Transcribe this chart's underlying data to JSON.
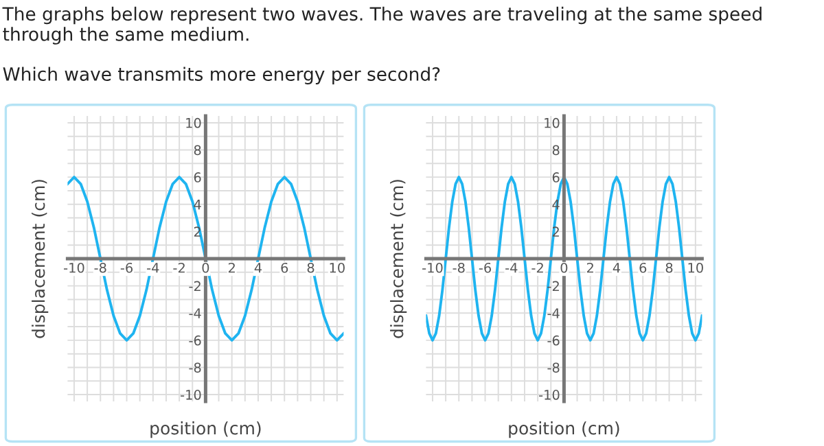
{
  "chart_data": [
    {
      "type": "line",
      "annotations": [
        "The graphs below represent two waves. The waves are traveling at the same speed through the same medium.",
        "Which wave transmits more energy per second?"
      ],
      "xlabel": "position (cm)",
      "ylabel": "displacement (cm)",
      "xlim": [
        -10.5,
        10.5
      ],
      "ylim": [
        -10.5,
        10.5
      ],
      "xticks": [
        -10,
        -8,
        -6,
        -4,
        -2,
        0,
        2,
        4,
        6,
        8,
        10
      ],
      "yticks": [
        -10,
        -8,
        -6,
        -4,
        -2,
        2,
        4,
        6,
        8,
        10
      ],
      "grid": true,
      "series": [
        {
          "color": "#1fb4f0",
          "x": [
            -10.5,
            -10,
            -9.5,
            -9,
            -8.5,
            -8,
            -7.5,
            -7,
            -6.5,
            -6,
            -5.5,
            -5,
            -4.5,
            -4,
            -3.5,
            -3,
            -2.5,
            -2,
            -1.5,
            -1,
            -0.5,
            0,
            0.5,
            1,
            1.5,
            2,
            2.5,
            3,
            3.5,
            4,
            4.5,
            5,
            5.5,
            6,
            6.5,
            7,
            7.5,
            8,
            8.5,
            9,
            9.5,
            10,
            10.5
          ],
          "values": [
            5.5,
            6,
            5.5,
            4.2,
            2.3,
            0,
            -2.3,
            -4.2,
            -5.5,
            -6,
            -5.5,
            -4.2,
            -2.3,
            0,
            2.3,
            4.2,
            5.5,
            6,
            5.5,
            4.2,
            2.3,
            0,
            -2.3,
            -4.2,
            -5.5,
            -6,
            -5.5,
            -4.2,
            -2.3,
            0,
            2.3,
            4.2,
            5.5,
            6,
            5.5,
            4.2,
            2.3,
            0,
            -2.3,
            -4.2,
            -5.5,
            -6,
            -5.5
          ]
        }
      ]
    },
    {
      "type": "line",
      "xlabel": "position (cm)",
      "ylabel": "displacement (cm)",
      "xlim": [
        -10.5,
        10.5
      ],
      "ylim": [
        -10.5,
        10.5
      ],
      "xticks": [
        -10,
        -8,
        -6,
        -4,
        -2,
        0,
        2,
        4,
        6,
        8,
        10
      ],
      "yticks": [
        -10,
        -8,
        -6,
        -4,
        -2,
        2,
        4,
        6,
        8,
        10
      ],
      "grid": true,
      "series": [
        {
          "color": "#1fb4f0",
          "x": [
            -10.5,
            -10.25,
            -10,
            -9.75,
            -9.5,
            -9.25,
            -9,
            -8.75,
            -8.5,
            -8.25,
            -8,
            -7.75,
            -7.5,
            -7.25,
            -7,
            -6.75,
            -6.5,
            -6.25,
            -6,
            -5.75,
            -5.5,
            -5.25,
            -5,
            -4.75,
            -4.5,
            -4.25,
            -4,
            -3.75,
            -3.5,
            -3.25,
            -3,
            -2.75,
            -2.5,
            -2.25,
            -2,
            -1.75,
            -1.5,
            -1.25,
            -1,
            -0.75,
            -0.5,
            -0.25,
            0,
            0.25,
            0.5,
            0.75,
            1,
            1.25,
            1.5,
            1.75,
            2,
            2.25,
            2.5,
            2.75,
            3,
            3.25,
            3.5,
            3.75,
            4,
            4.25,
            4.5,
            4.75,
            5,
            5.25,
            5.5,
            5.75,
            6,
            6.25,
            6.5,
            6.75,
            7,
            7.25,
            7.5,
            7.75,
            8,
            8.25,
            8.5,
            8.75,
            9,
            9.25,
            9.5,
            9.75,
            10,
            10.25,
            10.5
          ],
          "values": [
            -4.2,
            -5.5,
            -6,
            -5.5,
            -4.2,
            -2.3,
            0,
            2.3,
            4.2,
            5.5,
            6,
            5.5,
            4.2,
            2.3,
            0,
            -2.3,
            -4.2,
            -5.5,
            -6,
            -5.5,
            -4.2,
            -2.3,
            0,
            2.3,
            4.2,
            5.5,
            6,
            5.5,
            4.2,
            2.3,
            0,
            -2.3,
            -4.2,
            -5.5,
            -6,
            -5.5,
            -4.2,
            -2.3,
            0,
            2.3,
            4.2,
            5.5,
            6,
            5.5,
            4.2,
            2.3,
            0,
            -2.3,
            -4.2,
            -5.5,
            -6,
            -5.5,
            -4.2,
            -2.3,
            0,
            2.3,
            4.2,
            5.5,
            6,
            5.5,
            4.2,
            2.3,
            0,
            -2.3,
            -4.2,
            -5.5,
            -6,
            -5.5,
            -4.2,
            -2.3,
            0,
            2.3,
            4.2,
            5.5,
            6,
            5.5,
            4.2,
            2.3,
            0,
            -2.3,
            -4.2,
            -5.5,
            -6,
            -5.5,
            -4.2
          ]
        }
      ]
    }
  ]
}
